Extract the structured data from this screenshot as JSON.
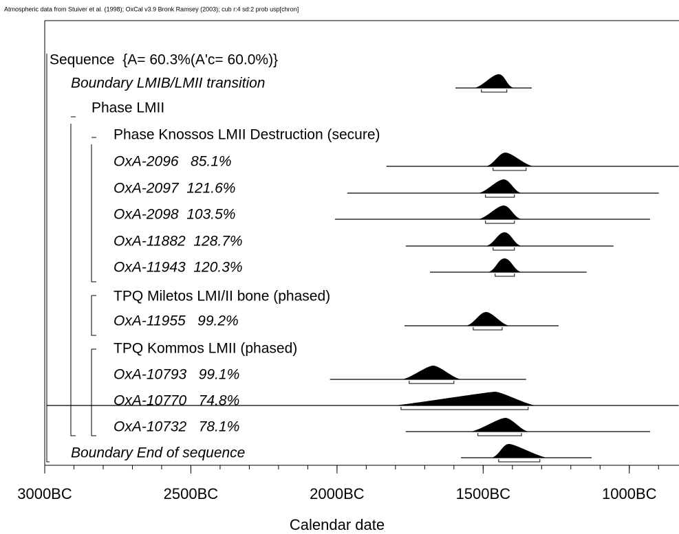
{
  "chart_data": {
    "type": "oxcal",
    "header": "Atmospheric data from Stuiver et al. (1998); OxCal v3.9 Bronk Ramsey (2003); cub r:4 sd:2 prob usp[chron]",
    "xlabel": "Calendar date",
    "xlim": [
      -3000,
      -830
    ],
    "xticks": [
      {
        "value": -3000,
        "label": "3000BC"
      },
      {
        "value": -2500,
        "label": "2500BC"
      },
      {
        "value": -2000,
        "label": "2000BC"
      },
      {
        "value": -1500,
        "label": "1500BC"
      },
      {
        "value": -1000,
        "label": "1000BC"
      }
    ],
    "minor_step": 100,
    "rows": [
      {
        "label": "Sequence  {A= 60.3%(A'c= 60.0%)}",
        "kind": "sequence",
        "depth": 0
      },
      {
        "label": "Boundary LMIB/LMII transition",
        "kind": "boundary",
        "depth": 1,
        "range": [
          -1595,
          -1334
        ],
        "hpd": [
          -1506,
          -1419
        ],
        "peak": -1447
      },
      {
        "label": "Phase LMII",
        "kind": "phase",
        "depth": 2
      },
      {
        "label": "Phase Knossos LMII Destruction (secure)",
        "kind": "phase",
        "depth": 3
      },
      {
        "label": "OxA-2096   85.1%",
        "kind": "date",
        "depth": 3,
        "range": [
          -1831,
          -831
        ],
        "hpd": [
          -1466,
          -1353
        ],
        "peak": -1424
      },
      {
        "label": "OxA-2097  121.6%",
        "kind": "date",
        "depth": 3,
        "range": [
          -1965,
          -899
        ],
        "hpd": [
          -1492,
          -1393
        ],
        "peak": -1430
      },
      {
        "label": "OxA-2098  103.5%",
        "kind": "date",
        "depth": 3,
        "range": [
          -2007,
          -929
        ],
        "hpd": [
          -1492,
          -1393
        ],
        "peak": -1430
      },
      {
        "label": "OxA-11882  128.7%",
        "kind": "date",
        "depth": 3,
        "range": [
          -1765,
          -1054
        ],
        "hpd": [
          -1466,
          -1393
        ],
        "peak": -1427
      },
      {
        "label": "OxA-11943  120.3%",
        "kind": "date",
        "depth": 3,
        "range": [
          -1682,
          -1146
        ],
        "hpd": [
          -1459,
          -1393
        ],
        "peak": -1427
      },
      {
        "label": "TPQ Miletos LMI/II bone (phased)",
        "kind": "phase",
        "depth": 3
      },
      {
        "label": "OxA-11955   99.2%",
        "kind": "date",
        "depth": 3,
        "range": [
          -1769,
          -1242
        ],
        "hpd": [
          -1534,
          -1435
        ],
        "peak": -1490
      },
      {
        "label": "TPQ Kommos LMII (phased)",
        "kind": "phase",
        "depth": 3
      },
      {
        "label": "OxA-10793   99.1%",
        "kind": "date",
        "depth": 3,
        "range": [
          -2024,
          -1353
        ],
        "hpd": [
          -1753,
          -1600
        ],
        "peak": -1671
      },
      {
        "label": "OxA-10770   74.8%",
        "kind": "date",
        "depth": 3,
        "range": [
          -2993,
          -831
        ],
        "hpd": [
          -1781,
          -1346
        ],
        "peak": -1459
      },
      {
        "label": "OxA-10732   78.1%",
        "kind": "date",
        "depth": 3,
        "range": [
          -1765,
          -929
        ],
        "hpd": [
          -1518,
          -1369
        ],
        "peak": -1424
      },
      {
        "label": "Boundary End of sequence",
        "kind": "boundary",
        "depth": 1,
        "range": [
          -1576,
          -1129
        ],
        "hpd": [
          -1447,
          -1306
        ],
        "peak": -1412
      }
    ]
  }
}
